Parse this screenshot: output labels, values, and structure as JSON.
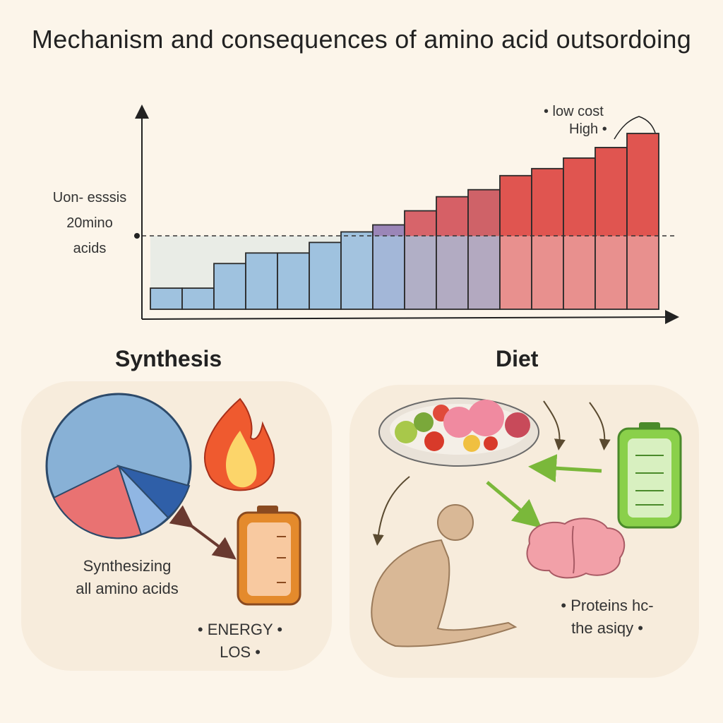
{
  "title": "Mechanism and consequences of amino acid outsordoing",
  "chart_data": {
    "type": "bar",
    "title": "Mechanism and consequences of amino acid outsordoing",
    "ylabel": "Uon- esssis 20mino acids",
    "xlabel": "",
    "annotations": [
      "• low cost",
      "High •"
    ],
    "threshold": 10.4,
    "values": [
      3,
      3,
      6.5,
      8,
      8,
      9.5,
      11,
      12,
      14,
      16,
      17,
      19,
      20,
      21.5,
      23,
      25
    ],
    "colors": [
      "#9fc2df",
      "#9fc2df",
      "#9fc2df",
      "#9fc2df",
      "#9fc2df",
      "#9fc2df",
      "#9fc2df",
      "#9b86b8",
      "#d7646a",
      "#d66066",
      "#cf6268",
      "#e05550",
      "#e05550",
      "#e05550",
      "#e05550",
      "#e05550"
    ],
    "lower_colors": [
      "#9fc2df",
      "#9fc2df",
      "#9fc2df",
      "#9fc2df",
      "#9fc2df",
      "#9fc2df",
      "#a3c3df",
      "#a3b7d8",
      "#b1afc6",
      "#b2abc2",
      "#b3a9c0",
      "#e8908e",
      "#e8908e",
      "#e8908e",
      "#e8908e",
      "#e8908e"
    ],
    "grid": false
  },
  "synthesis": {
    "heading": "Synthesis",
    "caption_line1": "Synthesizing",
    "caption_line2": "all amino acids",
    "energy_line1": "• ENERGY •",
    "energy_line2": "LOS •"
  },
  "diet": {
    "heading": "Diet",
    "caption_line1": "• Proteins hc-",
    "caption_line2": "the asiqy •"
  }
}
